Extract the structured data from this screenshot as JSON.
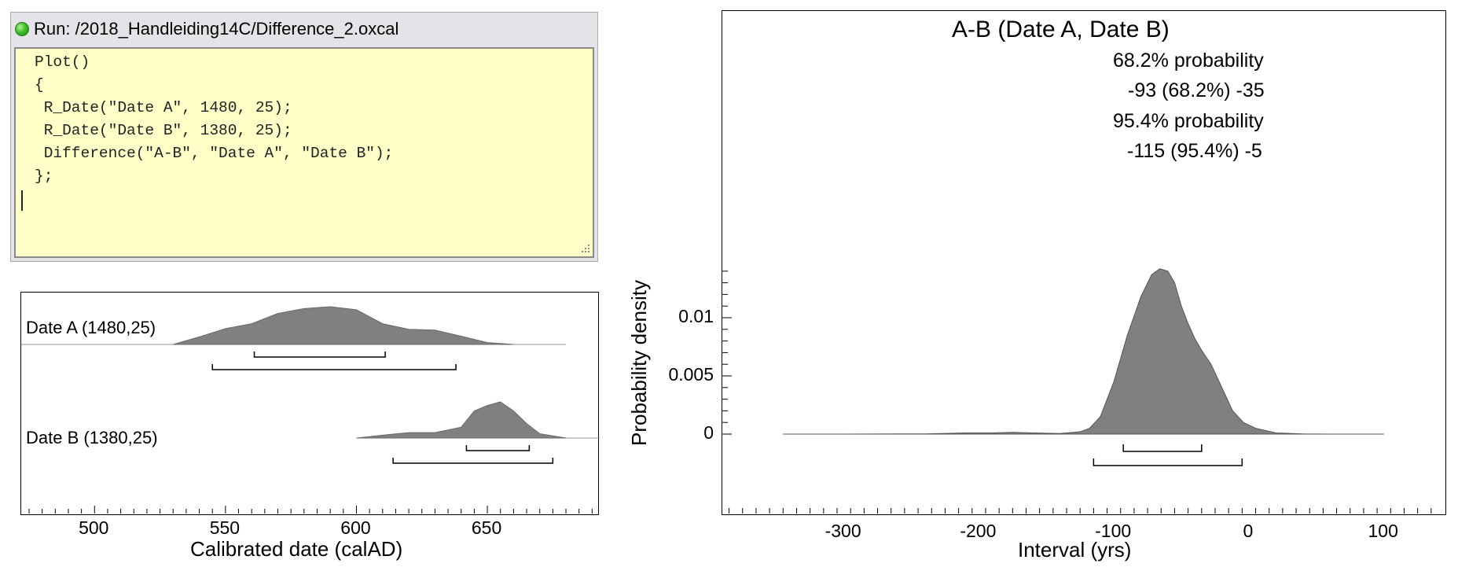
{
  "run_window": {
    "title": "Run: /2018_Handleiding14C/Difference_2.oxcal",
    "code_lines": [
      "Plot()",
      "{",
      " R_Date(\"Date A\", 1480, 25);",
      " R_Date(\"Date B\", 1380, 25);",
      " Difference(\"A-B\", \"Date A\", \"Date B\");",
      "};"
    ]
  },
  "icons": {
    "status": "green-status-dot-icon",
    "grip": "resize-grip-icon"
  },
  "colors": {
    "editor_bg": "#ffffc8",
    "distribution_fill": "#808080",
    "status_green": "#3fbf2a"
  },
  "chart_data": [
    {
      "type": "area",
      "title": "",
      "xlabel": "Calibrated date (calAD)",
      "ylabel": "",
      "xlim": [
        472,
        692
      ],
      "x_ticks": [
        500,
        550,
        600,
        650
      ],
      "series": [
        {
          "name": "Date A (1480,25)",
          "x": [
            530,
            540,
            550,
            560,
            570,
            580,
            590,
            600,
            610,
            620,
            630,
            640,
            650,
            660
          ],
          "values": [
            0,
            0.2,
            0.42,
            0.55,
            0.82,
            0.95,
            1.0,
            0.92,
            0.55,
            0.4,
            0.38,
            0.22,
            0.05,
            0
          ],
          "range_68": [
            561,
            611
          ],
          "range_95": [
            545,
            638
          ]
        },
        {
          "name": "Date B (1380,25)",
          "x": [
            600,
            610,
            620,
            630,
            640,
            645,
            650,
            655,
            660,
            665,
            670,
            680
          ],
          "values": [
            0,
            0.08,
            0.15,
            0.15,
            0.3,
            0.75,
            0.9,
            1.0,
            0.75,
            0.4,
            0.12,
            0
          ],
          "range_68": [
            642,
            666
          ],
          "range_95": [
            614,
            675
          ]
        }
      ]
    },
    {
      "type": "area",
      "title": "A-B (Date A, Date B)",
      "xlabel": "Interval (yrs)",
      "ylabel": "Probability density",
      "xlim": [
        -390,
        145
      ],
      "x_ticks": [
        -300,
        -200,
        -100,
        0,
        100
      ],
      "y_ticks": [
        0,
        0.005,
        0.01
      ],
      "y_tick_labels": [
        "0",
        "0.005",
        "0.01"
      ],
      "ylim": [
        0,
        0.0143
      ],
      "series": [
        {
          "name": "A-B",
          "x": [
            -345,
            -300,
            -240,
            -210,
            -190,
            -175,
            -160,
            -140,
            -125,
            -118,
            -110,
            -100,
            -90,
            -80,
            -72,
            -66,
            -60,
            -55,
            -50,
            -45,
            -40,
            -35,
            -28,
            -20,
            -12,
            -4,
            5,
            20,
            40,
            60,
            100
          ],
          "values": [
            0,
            0,
            2e-05,
            0.0001,
            0.0001,
            0.00015,
            0.0001,
            5e-05,
            0.0002,
            0.0005,
            0.0015,
            0.0045,
            0.0085,
            0.0118,
            0.0137,
            0.0142,
            0.014,
            0.013,
            0.011,
            0.0095,
            0.0082,
            0.0072,
            0.006,
            0.004,
            0.002,
            0.001,
            0.0005,
            0.0001,
            2e-05,
            0,
            0
          ],
          "range_68": [
            -93,
            -35
          ],
          "range_95": [
            -115,
            -5
          ]
        }
      ],
      "annotations": [
        "68.2% probability",
        "-93 (68.2%) -35",
        "95.4% probability",
        "-115 (95.4%) -5"
      ]
    }
  ]
}
